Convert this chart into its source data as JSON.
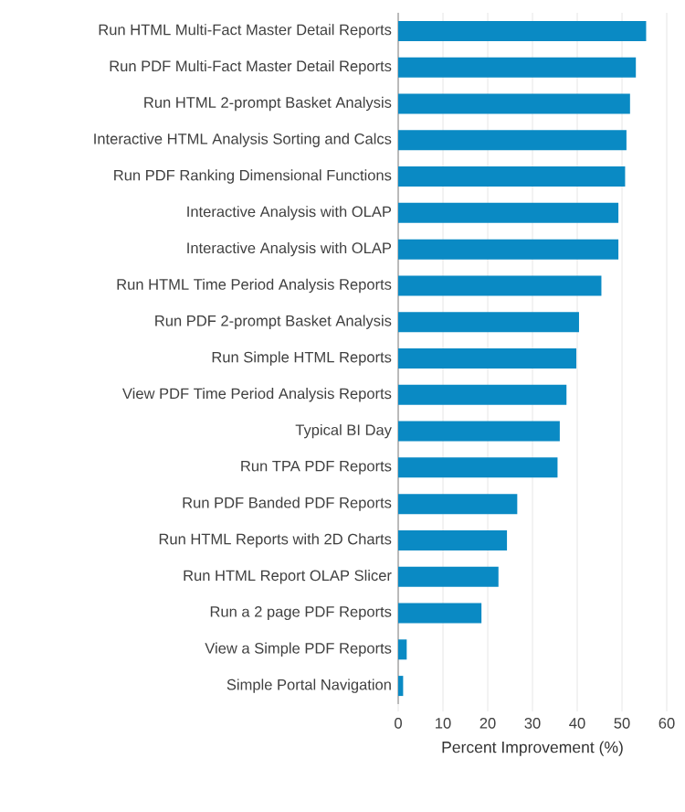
{
  "chart_data": {
    "type": "bar",
    "orientation": "horizontal",
    "xlabel": "Percent Improvement (%)",
    "categories": [
      "Run HTML Multi-Fact Master Detail Reports",
      "Run PDF Multi-Fact Master Detail Reports",
      "Run HTML 2-prompt Basket Analysis",
      "Interactive HTML Analysis Sorting and Calcs",
      "Run PDF Ranking Dimensional Functions",
      "Interactive Analysis with OLAP",
      "Interactive Analysis with OLAP",
      "Run HTML Time Period Analysis Reports",
      "Run PDF 2-prompt Basket Analysis",
      "Run Simple HTML Reports",
      "View PDF Time Period Analysis Reports",
      "Typical BI Day",
      "Run TPA PDF Reports",
      "Run PDF Banded PDF Reports",
      "Run HTML Reports with 2D Charts",
      "Run HTML Report OLAP Slicer",
      "Run a 2 page PDF Reports",
      "View a Simple PDF Reports",
      "Simple Portal Navigation"
    ],
    "values": [
      55.4,
      53.1,
      51.8,
      51.0,
      50.7,
      49.2,
      49.2,
      45.4,
      40.4,
      39.8,
      37.6,
      36.1,
      35.6,
      26.6,
      24.3,
      22.4,
      18.6,
      1.9,
      1.1
    ],
    "color": "#0a8ac4",
    "xlim": [
      0,
      60
    ],
    "xticks": [
      0,
      10,
      20,
      30,
      40,
      50,
      60
    ],
    "grid": "x"
  }
}
